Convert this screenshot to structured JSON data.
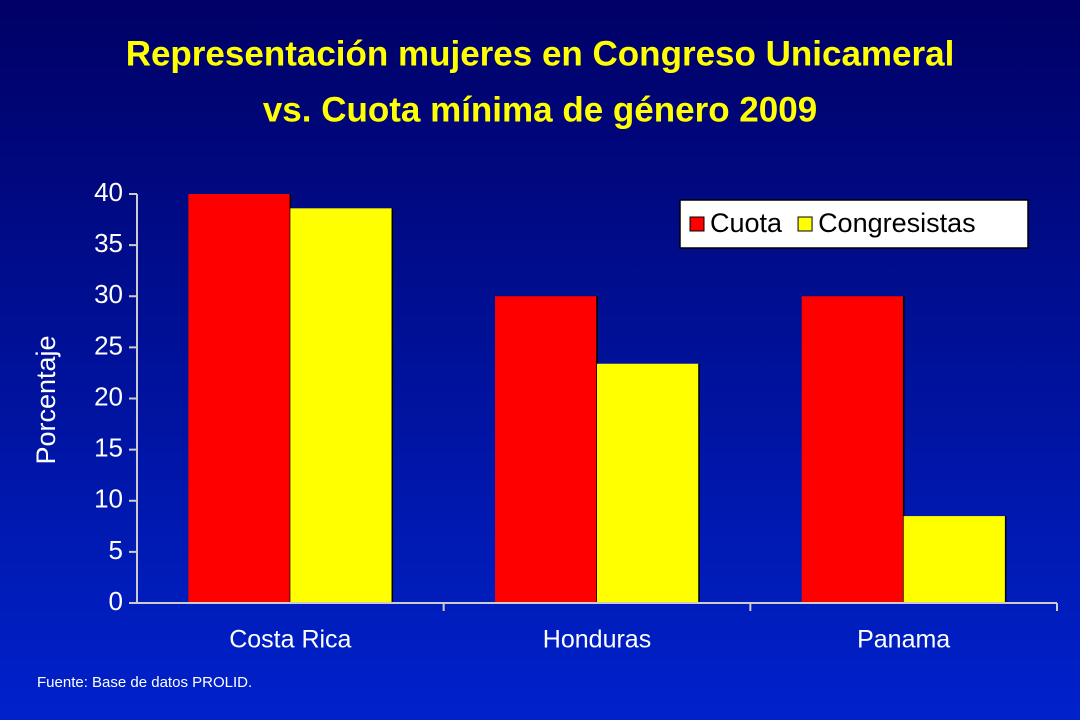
{
  "chart_data": {
    "type": "bar",
    "title": [
      "Representación mujeres en Congreso Unicameral",
      "vs. Cuota mínima de género 2009"
    ],
    "y_label": "Porcentaje",
    "categories": [
      "Costa Rica",
      "Honduras",
      "Panama"
    ],
    "series": [
      {
        "name": "Cuota",
        "color": "#ff0000",
        "values": [
          40,
          30,
          30
        ]
      },
      {
        "name": "Congresistas",
        "color": "#ffff00",
        "values": [
          38.6,
          23.4,
          8.5
        ]
      }
    ],
    "ylim": [
      0,
      40
    ],
    "yticks": [
      0,
      5,
      10,
      15,
      20,
      25,
      30,
      35,
      40
    ],
    "legend": "top-right",
    "source": "Fuente: Base de datos PROLID."
  }
}
